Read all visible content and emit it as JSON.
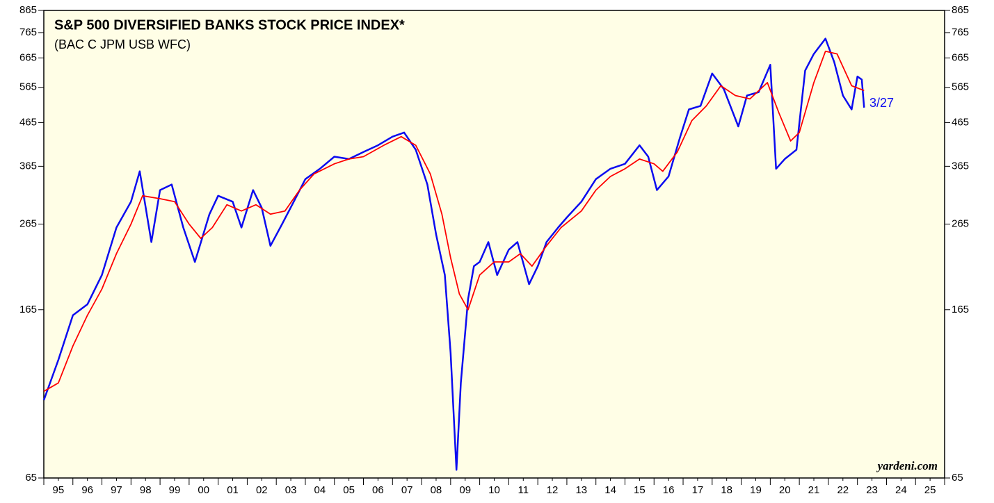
{
  "chart_data": {
    "type": "line",
    "title": "S&P 500 DIVERSIFIED BANKS STOCK PRICE INDEX*",
    "subtitle": "(BAC C JPM USB WFC)",
    "annotations": [
      "3/27",
      "yardeni.com"
    ],
    "log_scale": true,
    "background": "#fffee6",
    "xlim": [
      1995,
      2026
    ],
    "xticks": [
      {
        "value": 1995.5,
        "label": "95"
      },
      {
        "value": 1996.5,
        "label": "96"
      },
      {
        "value": 1997.5,
        "label": "97"
      },
      {
        "value": 1998.5,
        "label": "98"
      },
      {
        "value": 1999.5,
        "label": "99"
      },
      {
        "value": 2000.5,
        "label": "00"
      },
      {
        "value": 2001.5,
        "label": "01"
      },
      {
        "value": 2002.5,
        "label": "02"
      },
      {
        "value": 2003.5,
        "label": "03"
      },
      {
        "value": 2004.5,
        "label": "04"
      },
      {
        "value": 2005.5,
        "label": "05"
      },
      {
        "value": 2006.5,
        "label": "06"
      },
      {
        "value": 2007.5,
        "label": "07"
      },
      {
        "value": 2008.5,
        "label": "08"
      },
      {
        "value": 2009.5,
        "label": "09"
      },
      {
        "value": 2010.5,
        "label": "10"
      },
      {
        "value": 2011.5,
        "label": "11"
      },
      {
        "value": 2012.5,
        "label": "12"
      },
      {
        "value": 2013.5,
        "label": "13"
      },
      {
        "value": 2014.5,
        "label": "14"
      },
      {
        "value": 2015.5,
        "label": "15"
      },
      {
        "value": 2016.5,
        "label": "16"
      },
      {
        "value": 2017.5,
        "label": "17"
      },
      {
        "value": 2018.5,
        "label": "18"
      },
      {
        "value": 2019.5,
        "label": "19"
      },
      {
        "value": 2020.5,
        "label": "20"
      },
      {
        "value": 2021.5,
        "label": "21"
      },
      {
        "value": 2022.5,
        "label": "22"
      },
      {
        "value": 2023.5,
        "label": "23"
      },
      {
        "value": 2024.5,
        "label": "24"
      },
      {
        "value": 2025.5,
        "label": "25"
      }
    ],
    "ylim": [
      65,
      865
    ],
    "yticks": [
      65,
      165,
      265,
      365,
      465,
      565,
      665,
      765,
      865
    ],
    "series": [
      {
        "color": "#0b0bf0",
        "x": [
          1995.0,
          1995.5,
          1996.0,
          1996.5,
          1997.0,
          1997.5,
          1998.0,
          1998.3,
          1998.7,
          1999.0,
          1999.4,
          1999.8,
          2000.2,
          2000.7,
          2001.0,
          2001.5,
          2001.8,
          2002.2,
          2002.5,
          2002.8,
          2003.2,
          2003.6,
          2004.0,
          2004.5,
          2005.0,
          2005.5,
          2006.0,
          2006.5,
          2007.0,
          2007.4,
          2007.8,
          2008.2,
          2008.5,
          2008.8,
          2009.0,
          2009.2,
          2009.35,
          2009.6,
          2009.8,
          2010.0,
          2010.3,
          2010.6,
          2011.0,
          2011.3,
          2011.7,
          2012.0,
          2012.3,
          2012.7,
          2013.0,
          2013.5,
          2014.0,
          2014.5,
          2015.0,
          2015.5,
          2015.8,
          2016.1,
          2016.5,
          2016.9,
          2017.2,
          2017.6,
          2018.0,
          2018.4,
          2018.9,
          2019.2,
          2019.6,
          2020.0,
          2020.2,
          2020.5,
          2020.9,
          2021.2,
          2021.5,
          2021.9,
          2022.2,
          2022.5,
          2022.8,
          2023.0,
          2023.15,
          2023.23
        ],
        "values": [
          100,
          125,
          160,
          170,
          200,
          260,
          300,
          355,
          240,
          320,
          330,
          260,
          215,
          280,
          310,
          300,
          260,
          320,
          290,
          235,
          265,
          300,
          340,
          360,
          385,
          380,
          395,
          410,
          430,
          440,
          400,
          330,
          250,
          200,
          130,
          68,
          110,
          175,
          210,
          215,
          240,
          200,
          230,
          240,
          190,
          210,
          240,
          260,
          275,
          300,
          340,
          360,
          370,
          410,
          385,
          320,
          345,
          430,
          500,
          510,
          610,
          560,
          455,
          540,
          550,
          640,
          360,
          380,
          400,
          620,
          680,
          740,
          650,
          540,
          500,
          600,
          590,
          505
        ]
      },
      {
        "color": "#ff0000",
        "x": [
          1995.0,
          1995.5,
          1996.0,
          1996.5,
          1997.0,
          1997.5,
          1998.0,
          1998.4,
          1999.0,
          1999.5,
          2000.0,
          2000.4,
          2000.8,
          2001.3,
          2001.8,
          2002.3,
          2002.8,
          2003.3,
          2003.8,
          2004.3,
          2005.0,
          2005.5,
          2006.0,
          2006.7,
          2007.3,
          2007.8,
          2008.3,
          2008.7,
          2009.0,
          2009.3,
          2009.6,
          2010.0,
          2010.5,
          2011.0,
          2011.4,
          2011.8,
          2012.3,
          2012.8,
          2013.5,
          2014.0,
          2014.5,
          2015.0,
          2015.5,
          2016.0,
          2016.3,
          2016.8,
          2017.3,
          2017.8,
          2018.3,
          2018.8,
          2019.3,
          2019.9,
          2020.3,
          2020.7,
          2021.0,
          2021.5,
          2021.9,
          2022.3,
          2022.8,
          2023.23
        ],
        "values": [
          105,
          110,
          135,
          160,
          185,
          225,
          265,
          310,
          305,
          300,
          265,
          245,
          260,
          295,
          285,
          295,
          280,
          285,
          320,
          350,
          370,
          380,
          385,
          410,
          430,
          410,
          350,
          280,
          220,
          180,
          165,
          200,
          215,
          215,
          225,
          210,
          235,
          260,
          285,
          320,
          345,
          360,
          380,
          370,
          355,
          395,
          470,
          510,
          570,
          540,
          530,
          580,
          490,
          420,
          440,
          580,
          690,
          680,
          570,
          555
        ]
      }
    ]
  }
}
